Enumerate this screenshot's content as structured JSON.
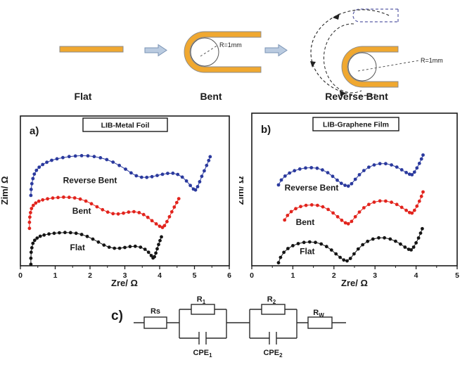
{
  "schematic": {
    "flat_label": "Flat",
    "bent_label": "Bent",
    "reverse_bent_label": "Reverse Bent",
    "bent_radius_label": "R=1mm",
    "reverse_radius_label": "R=1mm",
    "strip_color": "#F0A830",
    "arrow_fill": "#BACBE0",
    "arrow_stroke": "#7A93B4"
  },
  "chart_data": [
    {
      "id": "a",
      "type": "scatter",
      "panel_label": "a)",
      "title": "LIB-Metal Foil",
      "xlabel": "Zre/ Ω",
      "ylabel": "Zim/ Ω",
      "xlim": [
        0,
        6
      ],
      "ylim": [
        0,
        1
      ],
      "x_ticks": [
        0,
        1,
        2,
        3,
        4,
        5,
        6
      ],
      "x_minor_ticks": [
        0.5,
        1.5,
        2.5,
        3.5,
        4.5,
        5.5
      ],
      "y_ticks": [],
      "grid": false,
      "legend": "inline-curve-labels",
      "series": [
        {
          "name": "Flat",
          "color": "#151515",
          "label_pos": [
            1.64,
            0.122
          ],
          "points": [
            [
              0.3,
              0.01
            ],
            [
              0.3,
              0.05
            ],
            [
              0.31,
              0.09
            ],
            [
              0.33,
              0.12
            ],
            [
              0.36,
              0.15
            ],
            [
              0.41,
              0.17
            ],
            [
              0.48,
              0.185
            ],
            [
              0.57,
              0.197
            ],
            [
              0.68,
              0.205
            ],
            [
              0.82,
              0.212
            ],
            [
              0.97,
              0.217
            ],
            [
              1.12,
              0.22
            ],
            [
              1.28,
              0.222
            ],
            [
              1.44,
              0.221
            ],
            [
              1.6,
              0.217
            ],
            [
              1.76,
              0.209
            ],
            [
              1.92,
              0.196
            ],
            [
              2.08,
              0.178
            ],
            [
              2.24,
              0.158
            ],
            [
              2.4,
              0.138
            ],
            [
              2.55,
              0.124
            ],
            [
              2.7,
              0.117
            ],
            [
              2.85,
              0.117
            ],
            [
              3.0,
              0.122
            ],
            [
              3.15,
              0.128
            ],
            [
              3.3,
              0.13
            ],
            [
              3.45,
              0.124
            ],
            [
              3.58,
              0.11
            ],
            [
              3.68,
              0.09
            ],
            [
              3.76,
              0.068
            ],
            [
              3.81,
              0.052
            ],
            [
              3.85,
              0.06
            ],
            [
              3.89,
              0.085
            ],
            [
              3.93,
              0.113
            ],
            [
              3.97,
              0.142
            ],
            [
              4.01,
              0.168
            ],
            [
              4.05,
              0.193
            ]
          ]
        },
        {
          "name": "Bent",
          "color": "#E2241D",
          "label_pos": [
            1.76,
            0.366
          ],
          "points": [
            [
              0.26,
              0.25
            ],
            [
              0.26,
              0.29
            ],
            [
              0.27,
              0.325
            ],
            [
              0.29,
              0.355
            ],
            [
              0.32,
              0.382
            ],
            [
              0.37,
              0.403
            ],
            [
              0.44,
              0.419
            ],
            [
              0.53,
              0.431
            ],
            [
              0.64,
              0.44
            ],
            [
              0.78,
              0.447
            ],
            [
              0.93,
              0.452
            ],
            [
              1.08,
              0.456
            ],
            [
              1.24,
              0.458
            ],
            [
              1.4,
              0.457
            ],
            [
              1.56,
              0.453
            ],
            [
              1.72,
              0.445
            ],
            [
              1.88,
              0.432
            ],
            [
              2.04,
              0.414
            ],
            [
              2.2,
              0.394
            ],
            [
              2.36,
              0.374
            ],
            [
              2.51,
              0.358
            ],
            [
              2.66,
              0.348
            ],
            [
              2.81,
              0.346
            ],
            [
              2.96,
              0.351
            ],
            [
              3.11,
              0.358
            ],
            [
              3.26,
              0.361
            ],
            [
              3.41,
              0.355
            ],
            [
              3.54,
              0.342
            ],
            [
              3.66,
              0.323
            ],
            [
              3.78,
              0.301
            ],
            [
              3.9,
              0.28
            ],
            [
              4.0,
              0.264
            ],
            [
              4.08,
              0.256
            ],
            [
              4.14,
              0.268
            ],
            [
              4.21,
              0.295
            ],
            [
              4.28,
              0.327
            ],
            [
              4.35,
              0.36
            ],
            [
              4.42,
              0.392
            ],
            [
              4.49,
              0.422
            ],
            [
              4.55,
              0.448
            ]
          ]
        },
        {
          "name": "Reverse Bent",
          "color": "#2B3A9E",
          "label_pos": [
            2.0,
            0.57
          ],
          "points": [
            [
              0.3,
              0.47
            ],
            [
              0.31,
              0.51
            ],
            [
              0.33,
              0.548
            ],
            [
              0.36,
              0.582
            ],
            [
              0.4,
              0.612
            ],
            [
              0.46,
              0.637
            ],
            [
              0.54,
              0.658
            ],
            [
              0.64,
              0.676
            ],
            [
              0.76,
              0.691
            ],
            [
              0.9,
              0.704
            ],
            [
              1.05,
              0.714
            ],
            [
              1.22,
              0.722
            ],
            [
              1.4,
              0.729
            ],
            [
              1.58,
              0.733
            ],
            [
              1.76,
              0.735
            ],
            [
              1.94,
              0.734
            ],
            [
              2.12,
              0.729
            ],
            [
              2.3,
              0.721
            ],
            [
              2.48,
              0.709
            ],
            [
              2.66,
              0.692
            ],
            [
              2.84,
              0.67
            ],
            [
              3.02,
              0.645
            ],
            [
              3.18,
              0.62
            ],
            [
              3.33,
              0.601
            ],
            [
              3.48,
              0.591
            ],
            [
              3.63,
              0.59
            ],
            [
              3.78,
              0.595
            ],
            [
              3.93,
              0.603
            ],
            [
              4.08,
              0.611
            ],
            [
              4.23,
              0.617
            ],
            [
              4.38,
              0.618
            ],
            [
              4.52,
              0.61
            ],
            [
              4.65,
              0.592
            ],
            [
              4.77,
              0.566
            ],
            [
              4.88,
              0.536
            ],
            [
              4.97,
              0.512
            ],
            [
              5.03,
              0.506
            ],
            [
              5.09,
              0.528
            ],
            [
              5.15,
              0.561
            ],
            [
              5.21,
              0.597
            ],
            [
              5.28,
              0.634
            ],
            [
              5.35,
              0.67
            ],
            [
              5.41,
              0.703
            ],
            [
              5.45,
              0.728
            ]
          ]
        }
      ]
    },
    {
      "id": "b",
      "type": "scatter",
      "panel_label": "b)",
      "title": "LIB-Graphene Film",
      "xlabel": "Zre/ Ω",
      "ylabel": "Zim/ Ω",
      "xlim": [
        0,
        5
      ],
      "ylim": [
        0,
        1
      ],
      "x_ticks": [
        0,
        1,
        2,
        3,
        4,
        5
      ],
      "x_minor_ticks": [
        0.5,
        1.5,
        2.5,
        3.5,
        4.5
      ],
      "y_ticks": [],
      "grid": false,
      "legend": "inline-curve-labels",
      "series": [
        {
          "name": "Flat",
          "color": "#151515",
          "label_pos": [
            1.35,
            0.094
          ],
          "points": [
            [
              0.65,
              0.02
            ],
            [
              0.7,
              0.055
            ],
            [
              0.78,
              0.088
            ],
            [
              0.88,
              0.113
            ],
            [
              1.0,
              0.132
            ],
            [
              1.13,
              0.145
            ],
            [
              1.27,
              0.153
            ],
            [
              1.41,
              0.156
            ],
            [
              1.55,
              0.153
            ],
            [
              1.69,
              0.143
            ],
            [
              1.82,
              0.126
            ],
            [
              1.94,
              0.103
            ],
            [
              2.05,
              0.078
            ],
            [
              2.15,
              0.055
            ],
            [
              2.24,
              0.038
            ],
            [
              2.32,
              0.032
            ],
            [
              2.4,
              0.048
            ],
            [
              2.49,
              0.078
            ],
            [
              2.59,
              0.11
            ],
            [
              2.7,
              0.138
            ],
            [
              2.82,
              0.16
            ],
            [
              2.95,
              0.175
            ],
            [
              3.09,
              0.183
            ],
            [
              3.23,
              0.183
            ],
            [
              3.37,
              0.175
            ],
            [
              3.5,
              0.161
            ],
            [
              3.62,
              0.142
            ],
            [
              3.73,
              0.122
            ],
            [
              3.82,
              0.108
            ],
            [
              3.88,
              0.104
            ],
            [
              3.94,
              0.122
            ],
            [
              4.0,
              0.15
            ],
            [
              4.06,
              0.182
            ],
            [
              4.11,
              0.214
            ],
            [
              4.15,
              0.243
            ]
          ]
        },
        {
          "name": "Bent",
          "color": "#E2241D",
          "label_pos": [
            1.3,
            0.286
          ],
          "points": [
            [
              0.8,
              0.3
            ],
            [
              0.87,
              0.33
            ],
            [
              0.96,
              0.355
            ],
            [
              1.07,
              0.374
            ],
            [
              1.19,
              0.388
            ],
            [
              1.32,
              0.396
            ],
            [
              1.46,
              0.399
            ],
            [
              1.6,
              0.396
            ],
            [
              1.73,
              0.386
            ],
            [
              1.86,
              0.369
            ],
            [
              1.98,
              0.346
            ],
            [
              2.09,
              0.321
            ],
            [
              2.19,
              0.298
            ],
            [
              2.28,
              0.281
            ],
            [
              2.35,
              0.275
            ],
            [
              2.43,
              0.291
            ],
            [
              2.52,
              0.321
            ],
            [
              2.62,
              0.352
            ],
            [
              2.73,
              0.38
            ],
            [
              2.85,
              0.402
            ],
            [
              2.98,
              0.417
            ],
            [
              3.12,
              0.425
            ],
            [
              3.26,
              0.424
            ],
            [
              3.4,
              0.416
            ],
            [
              3.53,
              0.402
            ],
            [
              3.65,
              0.383
            ],
            [
              3.76,
              0.363
            ],
            [
              3.84,
              0.349
            ],
            [
              3.9,
              0.345
            ],
            [
              3.96,
              0.363
            ],
            [
              4.02,
              0.391
            ],
            [
              4.08,
              0.423
            ],
            [
              4.13,
              0.455
            ],
            [
              4.17,
              0.484
            ]
          ]
        },
        {
          "name": "Reverse Bent",
          "color": "#2B3A9E",
          "label_pos": [
            1.455,
            0.512
          ],
          "points": [
            [
              0.65,
              0.53
            ],
            [
              0.72,
              0.562
            ],
            [
              0.81,
              0.588
            ],
            [
              0.92,
              0.608
            ],
            [
              1.04,
              0.623
            ],
            [
              1.17,
              0.634
            ],
            [
              1.31,
              0.641
            ],
            [
              1.45,
              0.643
            ],
            [
              1.59,
              0.639
            ],
            [
              1.72,
              0.628
            ],
            [
              1.85,
              0.61
            ],
            [
              1.97,
              0.586
            ],
            [
              2.08,
              0.561
            ],
            [
              2.18,
              0.54
            ],
            [
              2.27,
              0.527
            ],
            [
              2.35,
              0.522
            ],
            [
              2.43,
              0.538
            ],
            [
              2.52,
              0.567
            ],
            [
              2.62,
              0.597
            ],
            [
              2.73,
              0.624
            ],
            [
              2.85,
              0.646
            ],
            [
              2.98,
              0.661
            ],
            [
              3.12,
              0.669
            ],
            [
              3.26,
              0.669
            ],
            [
              3.4,
              0.661
            ],
            [
              3.53,
              0.647
            ],
            [
              3.65,
              0.629
            ],
            [
              3.76,
              0.611
            ],
            [
              3.84,
              0.6
            ],
            [
              3.9,
              0.597
            ],
            [
              3.96,
              0.614
            ],
            [
              4.02,
              0.641
            ],
            [
              4.08,
              0.671
            ],
            [
              4.13,
              0.7
            ],
            [
              4.17,
              0.726
            ]
          ]
        }
      ]
    }
  ],
  "circuit": {
    "panel_label": "c)",
    "labels": {
      "rs": "Rs",
      "r1_base": "R",
      "r1_sub": "1",
      "r2_base": "R",
      "r2_sub": "2",
      "rw_base": "R",
      "rw_sub": "W",
      "cpe_base": "CPE",
      "cpe1_sub": "1",
      "cpe2_sub": "2"
    }
  }
}
